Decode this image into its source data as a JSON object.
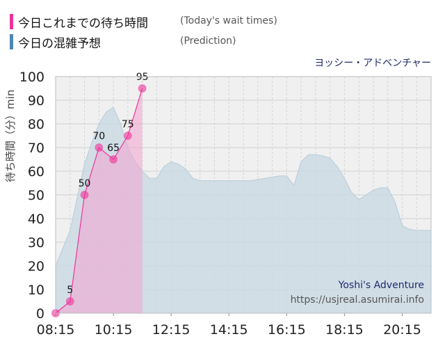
{
  "legend": [
    {
      "label": "今日これまでの待ち時間",
      "label_en": "(Today's wait times)",
      "color": "#ee3399"
    },
    {
      "label": "今日の混雑予想",
      "label_en": "(Prediction)",
      "color": "#4f86b8"
    }
  ],
  "attraction_name": "ヨッシー・アドベンチャー",
  "watermark": {
    "name": "Yoshi's Adventure",
    "url": "https://usjreal.asumirai.info"
  },
  "colors": {
    "actual_line": "#ee3399",
    "actual_fill": "#f4a3cf",
    "prediction_fill": "#c9d9e4",
    "prediction_line": "#b8cbda",
    "plot_bg": "#f0f0f0",
    "grid": "#cfcfcf"
  },
  "chart_data": {
    "type": "area",
    "title": "",
    "xlabel": "",
    "ylabel": "待ち時間（分）min",
    "ylim": [
      0,
      100
    ],
    "yticks": [
      "0",
      "10",
      "20",
      "30",
      "40",
      "50",
      "60",
      "70",
      "80",
      "90",
      "100"
    ],
    "xlim": [
      "08:15",
      "21:15"
    ],
    "xticks": [
      "08:15",
      "10:15",
      "12:15",
      "14:15",
      "16:15",
      "18:15",
      "20:15"
    ],
    "grid": true,
    "series": [
      {
        "name": "今日の混雑予想",
        "kind": "prediction",
        "x": [
          "08:15",
          "08:45",
          "09:15",
          "09:30",
          "09:45",
          "10:00",
          "10:15",
          "10:30",
          "10:45",
          "11:00",
          "11:15",
          "11:30",
          "11:45",
          "12:00",
          "12:15",
          "12:30",
          "12:45",
          "13:00",
          "13:15",
          "13:30",
          "14:00",
          "14:30",
          "15:00",
          "15:30",
          "16:00",
          "16:15",
          "16:30",
          "16:45",
          "17:00",
          "17:15",
          "17:30",
          "17:45",
          "18:00",
          "18:15",
          "18:30",
          "18:45",
          "19:00",
          "19:15",
          "19:30",
          "19:45",
          "20:00",
          "20:15",
          "20:30",
          "20:45",
          "21:00",
          "21:15"
        ],
        "values": [
          20,
          35,
          63,
          72,
          80,
          85,
          87,
          80,
          70,
          64,
          60,
          57,
          57,
          62,
          64,
          63,
          61,
          57,
          56,
          56,
          56,
          56,
          56,
          57,
          58,
          58,
          54,
          64,
          67,
          67,
          66.5,
          65.5,
          62,
          57,
          51,
          48,
          50,
          52,
          53,
          53,
          47,
          37,
          35.5,
          35,
          35,
          35
        ]
      },
      {
        "name": "今日これまでの待ち時間",
        "kind": "actual",
        "x": [
          "08:15",
          "08:45",
          "09:15",
          "09:45",
          "10:15",
          "10:45",
          "11:15"
        ],
        "values": [
          0,
          5,
          50,
          70,
          65,
          75,
          95
        ],
        "labels": [
          "",
          "5",
          "50",
          "70",
          "65",
          "75",
          "95"
        ]
      }
    ]
  }
}
